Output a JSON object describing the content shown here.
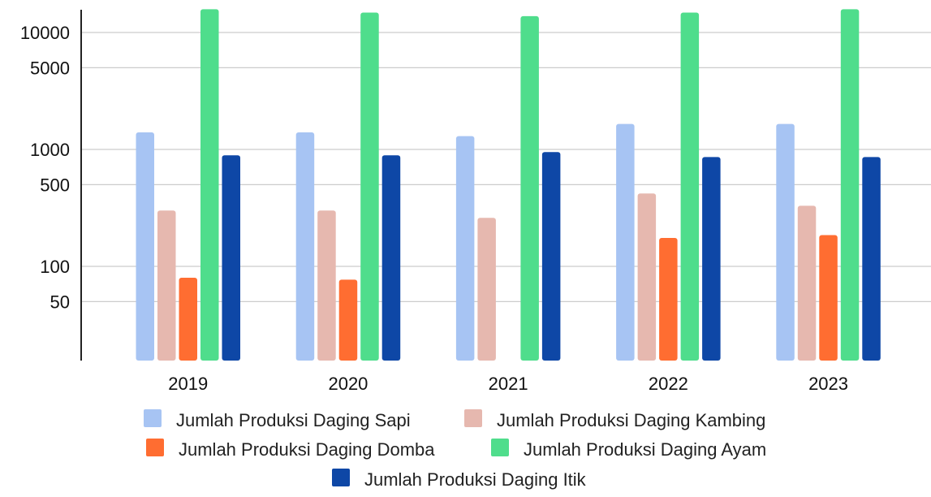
{
  "chart_data": {
    "type": "bar",
    "yscale": "log",
    "ylim": [
      12,
      17000
    ],
    "yticks": [
      50,
      100,
      500,
      1000,
      5000,
      10000
    ],
    "ytick_labels": [
      "50",
      "100",
      "500",
      "1000",
      "5000",
      "10000"
    ],
    "categories": [
      "2019",
      "2020",
      "2021",
      "2022",
      "2023"
    ],
    "grid": true,
    "legend_position": "bottom",
    "series": [
      {
        "name": "Jumlah Produksi Daging Sapi",
        "color": "#a7c4f3",
        "values": [
          1400,
          1400,
          1300,
          1650,
          1650
        ]
      },
      {
        "name": "Jumlah Produksi Daging Kambing",
        "color": "#e6b8af",
        "values": [
          300,
          300,
          260,
          420,
          330
        ]
      },
      {
        "name": "Jumlah Produksi Daging Domba",
        "color": "#ff6d31",
        "values": [
          80,
          77,
          null,
          175,
          185
        ]
      },
      {
        "name": "Jumlah Produksi Daging Ayam",
        "color": "#4fdd8c",
        "values": [
          15800,
          14800,
          13800,
          14800,
          15800
        ]
      },
      {
        "name": "Jumlah Produksi Daging Itik",
        "color": "#0e47a6",
        "values": [
          890,
          890,
          950,
          860,
          860
        ]
      }
    ]
  }
}
